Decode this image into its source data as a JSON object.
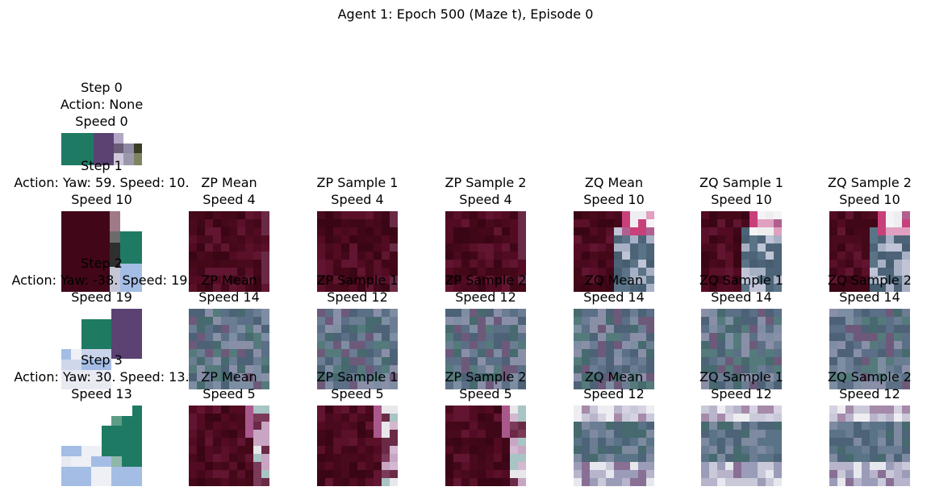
{
  "figure": {
    "title": "Agent 1: Epoch 500 (Maze t), Episode 0"
  },
  "rows": [
    {
      "obs": {
        "lines": [
          "Step 0",
          "Action: None",
          "Speed 0"
        ],
        "tone": "maze0"
      },
      "preds": []
    },
    {
      "obs": {
        "lines": [
          "Step 1",
          "Action: Yaw: 59. Speed: 10.",
          "Speed 10"
        ],
        "tone": "maze1"
      },
      "preds": [
        {
          "lines": [
            "ZP Mean",
            "Speed 4"
          ],
          "tone": "dark"
        },
        {
          "lines": [
            "ZP Sample 1",
            "Speed 4"
          ],
          "tone": "dark"
        },
        {
          "lines": [
            "ZP Sample 2",
            "Speed 4"
          ],
          "tone": "dark"
        },
        {
          "lines": [
            "ZQ Mean",
            "Speed 10"
          ],
          "tone": "darkright"
        },
        {
          "lines": [
            "ZQ Sample 1",
            "Speed 10"
          ],
          "tone": "darkright"
        },
        {
          "lines": [
            "ZQ Sample 2",
            "Speed 10"
          ],
          "tone": "darkright"
        }
      ]
    },
    {
      "obs": {
        "lines": [
          "Step 2",
          "Action: Yaw: -38. Speed: 19.",
          "Speed 19"
        ],
        "tone": "maze2"
      },
      "preds": [
        {
          "lines": [
            "ZP Mean",
            "Speed 14"
          ],
          "tone": "gray"
        },
        {
          "lines": [
            "ZP Sample 1",
            "Speed 12"
          ],
          "tone": "gray"
        },
        {
          "lines": [
            "ZP Sample 2",
            "Speed 12"
          ],
          "tone": "gray"
        },
        {
          "lines": [
            "ZQ Mean",
            "Speed 14"
          ],
          "tone": "gray"
        },
        {
          "lines": [
            "ZQ Sample 1",
            "Speed 14"
          ],
          "tone": "gray"
        },
        {
          "lines": [
            "ZQ Sample 2",
            "Speed 14"
          ],
          "tone": "gray"
        }
      ]
    },
    {
      "obs": {
        "lines": [
          "Step 3",
          "Action: Yaw: 30. Speed: 13.",
          "Speed 13"
        ],
        "tone": "maze3"
      },
      "preds": [
        {
          "lines": [
            "ZP Mean",
            "Speed 5"
          ],
          "tone": "darkedge"
        },
        {
          "lines": [
            "ZP Sample 1",
            "Speed 5"
          ],
          "tone": "darkedge"
        },
        {
          "lines": [
            "ZP Sample 2",
            "Speed 5"
          ],
          "tone": "darkedge"
        },
        {
          "lines": [
            "ZQ Mean",
            "Speed 12"
          ],
          "tone": "light"
        },
        {
          "lines": [
            "ZQ Sample 1",
            "Speed 12"
          ],
          "tone": "light"
        },
        {
          "lines": [
            "ZQ Sample 2",
            "Speed 12"
          ],
          "tone": "light"
        }
      ]
    }
  ]
}
